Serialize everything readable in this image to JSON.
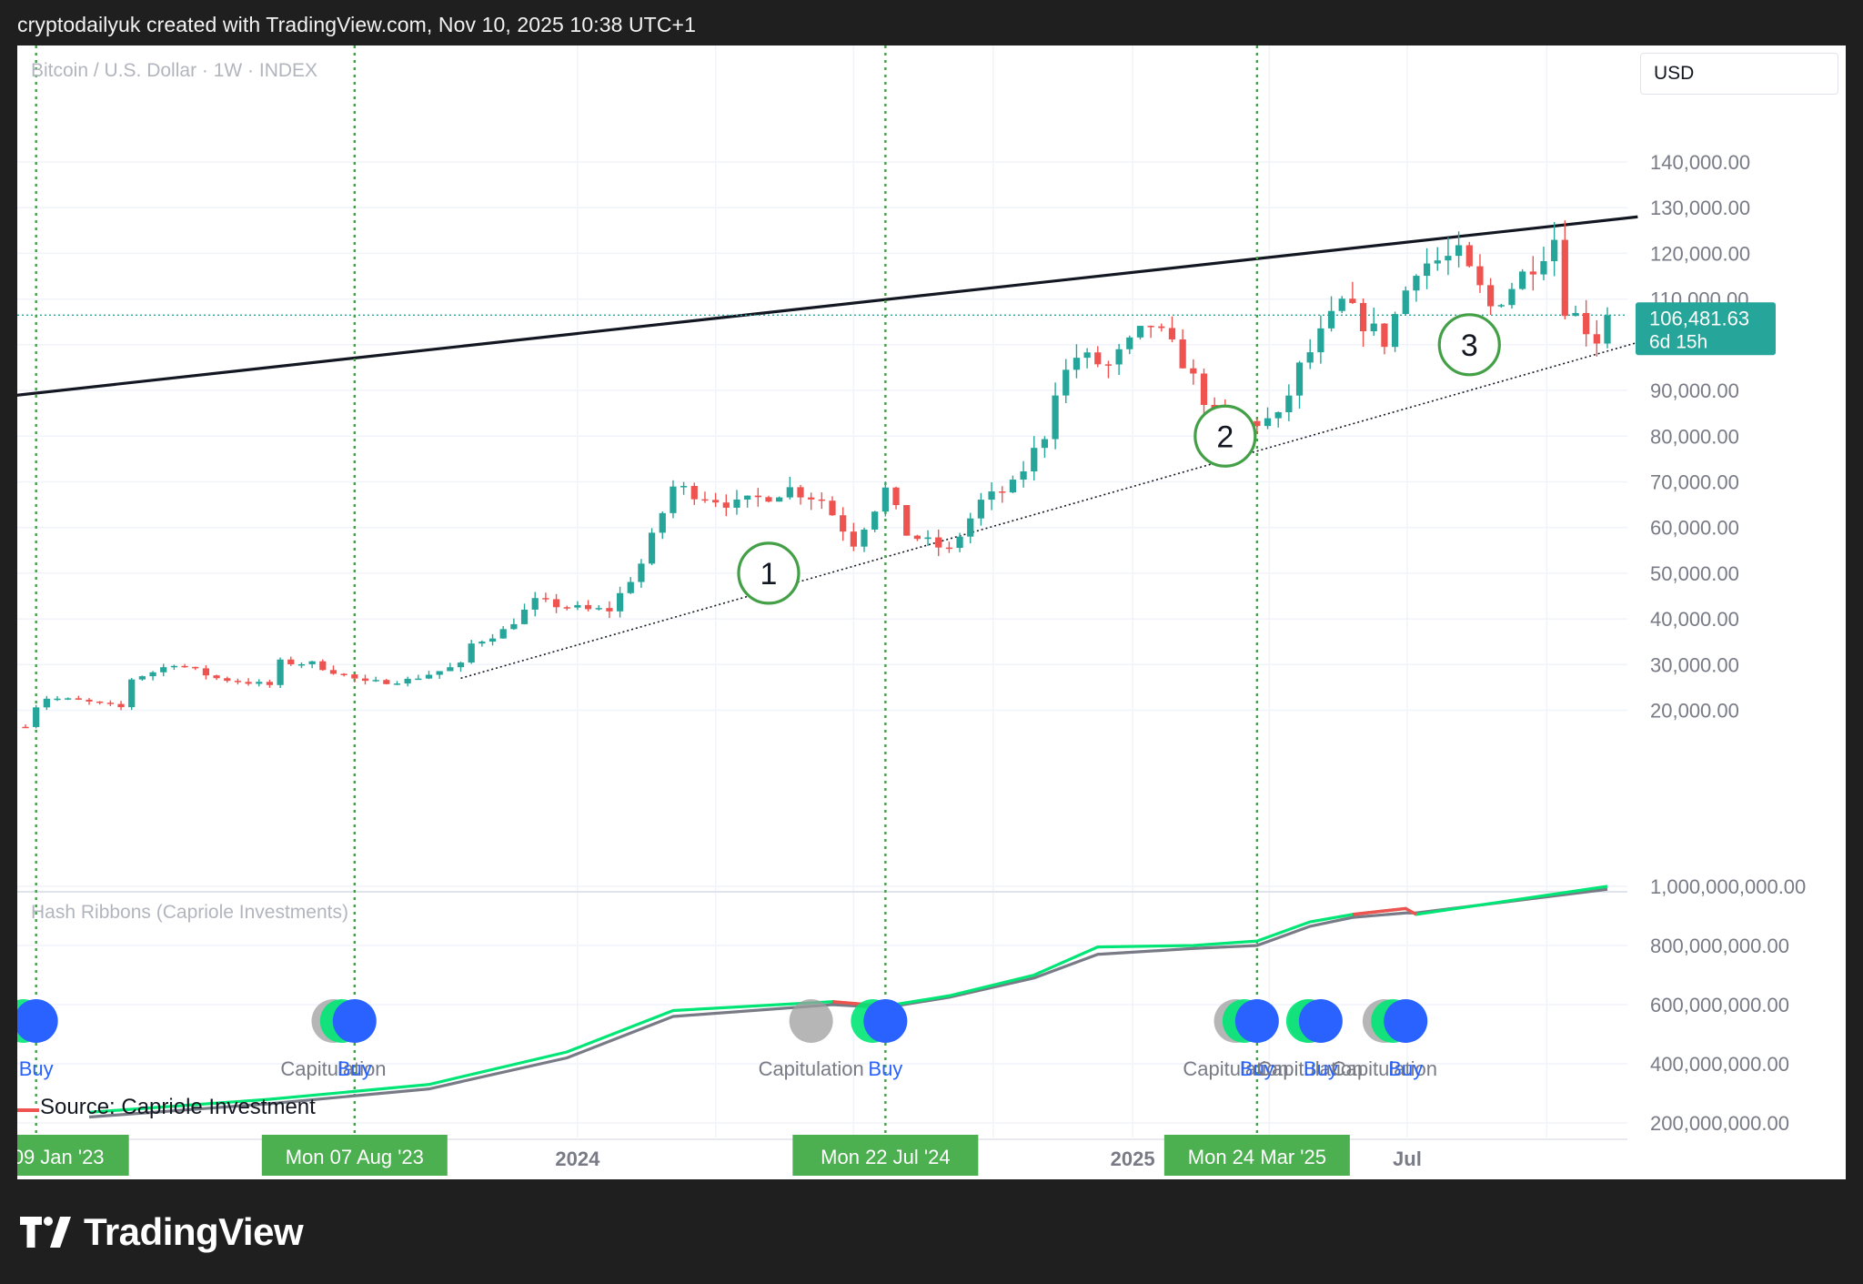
{
  "header": {
    "attribution": "cryptodailyuk created with TradingView.com, Nov 10, 2025 10:38 UTC+1"
  },
  "brand": {
    "name": "TradingView"
  },
  "chart_title": "Bitcoin / U.S. Dollar · 1W · INDEX",
  "currency": "USD",
  "indicator_title": "Hash Ribbons (Capriole Investments)",
  "source": "Source: Capriole Investment",
  "price_label": {
    "price": "106,481.63",
    "countdown": "6d 15h"
  },
  "colors": {
    "up": "#26a69a",
    "down": "#ef5350",
    "signal_line": "#43a047",
    "buy": "#2962ff",
    "capitulation": "#9e9e9e",
    "ribbon_fast": "#00e676",
    "ribbon_slow": "#787b86",
    "ribbon_bear": "#ef5350",
    "badge": "#4caf50"
  },
  "markers": [
    "1",
    "2",
    "3"
  ],
  "x_axis": {
    "ticks": [
      "2024",
      "2025",
      "Jul"
    ],
    "highlights": [
      "Mon 09 Jan '23",
      "Mon 07 Aug '23",
      "Mon 22 Jul '24",
      "Mon 24 Mar '25"
    ]
  },
  "signals": {
    "labels": [
      "Buy",
      "Capitulation",
      "Buy",
      "Capitulation",
      "Buy",
      "Capitulation",
      "Buy",
      "Capitulation",
      "Buy",
      "Capitulation",
      "Buy"
    ]
  },
  "chart_data": [
    {
      "type": "candlestick",
      "title": "Bitcoin / U.S. Dollar · 1W · INDEX",
      "x_unit": "week",
      "x_range": [
        "2023-01-02",
        "2025-11-10"
      ],
      "ylim": [
        10000,
        145000
      ],
      "y_ticks": [
        "20,000.00",
        "30,000.00",
        "40,000.00",
        "50,000.00",
        "60,000.00",
        "70,000.00",
        "80,000.00",
        "90,000.00",
        "100,000.00",
        "110,000.00",
        "120,000.00",
        "130,000.00",
        "140,000.00"
      ],
      "y_tick_values": [
        20000,
        30000,
        40000,
        50000,
        60000,
        70000,
        80000,
        90000,
        100000,
        110000,
        120000,
        130000,
        140000
      ],
      "current_price": 106481.63,
      "weekly_close_path": [
        [
          "2023-01-02",
          16700
        ],
        [
          "2023-01-09",
          20900
        ],
        [
          "2023-01-16",
          22700
        ],
        [
          "2023-02-06",
          22100
        ],
        [
          "2023-03-06",
          20600
        ],
        [
          "2023-03-13",
          26900
        ],
        [
          "2023-03-27",
          28400
        ],
        [
          "2023-04-10",
          30300
        ],
        [
          "2023-05-08",
          27000
        ],
        [
          "2023-06-12",
          25500
        ],
        [
          "2023-06-19",
          30500
        ],
        [
          "2023-07-10",
          30200
        ],
        [
          "2023-08-14",
          26000
        ],
        [
          "2023-09-11",
          26600
        ],
        [
          "2023-10-16",
          29900
        ],
        [
          "2023-10-23",
          34500
        ],
        [
          "2023-11-13",
          37400
        ],
        [
          "2023-12-04",
          43800
        ],
        [
          "2024-01-08",
          41900
        ],
        [
          "2024-01-22",
          42000
        ],
        [
          "2024-02-12",
          52100
        ],
        [
          "2024-03-04",
          68900
        ],
        [
          "2024-03-11",
          68300
        ],
        [
          "2024-04-15",
          64900
        ],
        [
          "2024-05-20",
          68500
        ],
        [
          "2024-06-10",
          66100
        ],
        [
          "2024-07-01",
          56700
        ],
        [
          "2024-07-22",
          68300
        ],
        [
          "2024-08-05",
          58700
        ],
        [
          "2024-09-02",
          54800
        ],
        [
          "2024-09-23",
          65600
        ],
        [
          "2024-10-14",
          69000
        ],
        [
          "2024-11-04",
          80400
        ],
        [
          "2024-11-11",
          90500
        ],
        [
          "2024-11-25",
          97400
        ],
        [
          "2024-12-16",
          95300
        ],
        [
          "2025-01-13",
          104500
        ],
        [
          "2025-02-03",
          96500
        ],
        [
          "2025-02-24",
          84200
        ],
        [
          "2025-03-10",
          82600
        ],
        [
          "2025-04-07",
          83700
        ],
        [
          "2025-04-21",
          94800
        ],
        [
          "2025-05-19",
          109000
        ],
        [
          "2025-06-16",
          100900
        ],
        [
          "2025-07-07",
          117500
        ],
        [
          "2025-08-04",
          119300
        ],
        [
          "2025-08-25",
          108200
        ],
        [
          "2025-09-15",
          115300
        ],
        [
          "2025-10-06",
          123500
        ],
        [
          "2025-10-13",
          108700
        ],
        [
          "2025-11-03",
          101400
        ],
        [
          "2025-11-10",
          106481.63
        ]
      ],
      "lines": [
        {
          "name": "resistance",
          "style": "solid",
          "points": [
            [
              "2022-12-01",
              88000
            ],
            [
              "2025-11-30",
              128000
            ]
          ]
        },
        {
          "name": "support",
          "style": "dotted",
          "points": [
            [
              "2023-10-16",
              27000
            ],
            [
              "2025-11-30",
              100500
            ]
          ]
        }
      ],
      "markers": [
        {
          "label": "1",
          "x": "2024-05-06",
          "y": 50000
        },
        {
          "label": "2",
          "x": "2025-03-03",
          "y": 80000
        },
        {
          "label": "3",
          "x": "2025-08-11",
          "y": 100000
        }
      ],
      "vertical_lines": [
        "2023-01-09",
        "2023-08-07",
        "2024-07-22",
        "2025-03-24"
      ],
      "grid": true
    },
    {
      "type": "line",
      "title": "Hash Ribbons (Capriole Investments)",
      "ylim": [
        150000000,
        1100000000
      ],
      "y_ticks": [
        "200,000,000.00",
        "400,000,000.00",
        "600,000,000.00",
        "800,000,000.00",
        "1,000,000,000.00"
      ],
      "y_tick_values": [
        200000000,
        400000000,
        600000000,
        800000000,
        1000000000
      ],
      "series": [
        {
          "style": "fast",
          "values": [
            [
              "2023-02-13",
              236000000
            ],
            [
              "2023-06-12",
              280000000
            ],
            [
              "2023-09-25",
              330000000
            ],
            [
              "2023-12-25",
              440000000
            ],
            [
              "2024-03-04",
              580000000
            ],
            [
              "2024-06-17",
              610000000
            ],
            [
              "2024-07-22",
              595000000
            ],
            [
              "2024-09-02",
              630000000
            ],
            [
              "2024-10-28",
              700000000
            ],
            [
              "2024-12-09",
              795000000
            ],
            [
              "2025-02-10",
              800000000
            ],
            [
              "2025-03-24",
              815000000
            ],
            [
              "2025-04-28",
              880000000
            ],
            [
              "2025-05-26",
              905000000
            ],
            [
              "2025-06-30",
              925000000
            ],
            [
              "2025-07-07",
              905000000
            ],
            [
              "2025-11-10",
              1000000000
            ]
          ]
        },
        {
          "style": "slow",
          "values": [
            [
              "2023-02-13",
              220000000
            ],
            [
              "2023-06-12",
              265000000
            ],
            [
              "2023-09-25",
              315000000
            ],
            [
              "2023-12-25",
              420000000
            ],
            [
              "2024-03-04",
              560000000
            ],
            [
              "2024-06-17",
              600000000
            ],
            [
              "2024-07-22",
              590000000
            ],
            [
              "2024-09-02",
              625000000
            ],
            [
              "2024-10-28",
              690000000
            ],
            [
              "2024-12-09",
              770000000
            ],
            [
              "2025-02-10",
              790000000
            ],
            [
              "2025-03-24",
              800000000
            ],
            [
              "2025-04-28",
              865000000
            ],
            [
              "2025-05-26",
              895000000
            ],
            [
              "2025-06-30",
              910000000
            ],
            [
              "2025-07-07",
              910000000
            ],
            [
              "2025-11-10",
              990000000
            ]
          ]
        }
      ],
      "signals": [
        {
          "type": "buy",
          "x": "2023-01-09"
        },
        {
          "type": "capitulation",
          "x": "2023-07-24"
        },
        {
          "type": "buy",
          "x": "2023-08-07"
        },
        {
          "type": "capitulation",
          "x": "2024-06-03"
        },
        {
          "type": "buy",
          "x": "2024-07-22"
        },
        {
          "type": "capitulation",
          "x": "2025-03-10"
        },
        {
          "type": "buy",
          "x": "2025-03-24"
        },
        {
          "type": "capitulation",
          "x": "2025-04-28"
        },
        {
          "type": "buy",
          "x": "2025-05-05"
        },
        {
          "type": "capitulation",
          "x": "2025-06-16"
        },
        {
          "type": "buy",
          "x": "2025-06-30"
        }
      ],
      "grid": true
    }
  ]
}
